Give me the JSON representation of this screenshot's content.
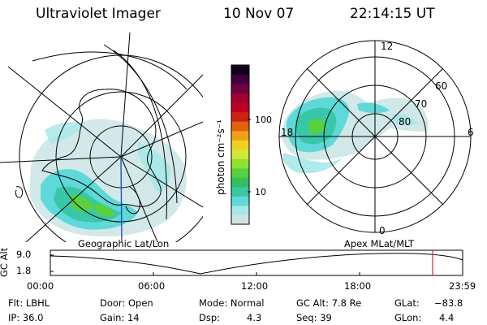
{
  "header": {
    "instrument": "Ultraviolet Imager",
    "date": "10 Nov 07",
    "time": "22:14:15 UT"
  },
  "maps": {
    "left_label": "Geographic Lat/Lon",
    "right_label": "Apex MLat/MLT",
    "polar": {
      "lat_labels": [
        "80",
        "70",
        "60"
      ],
      "mlt_labels": [
        "12",
        "18",
        "6",
        "0"
      ]
    }
  },
  "colorbar": {
    "unit_label": "photon cm⁻²s⁻¹",
    "tick_labels": [
      "100",
      "10"
    ],
    "colors": [
      "#cfe3e3",
      "#a8e8e8",
      "#5ed8d8",
      "#38c8a8",
      "#30c060",
      "#58d040",
      "#90e030",
      "#d0e838",
      "#f0d020",
      "#f0a018",
      "#e06010",
      "#d02010",
      "#c00020",
      "#a00030",
      "#700040",
      "#400040",
      "#100018"
    ]
  },
  "timeline": {
    "axis_title": "GC Alt",
    "y_ticks": [
      "9.0",
      "1.8"
    ],
    "x_ticks": [
      "00:00",
      "06:00",
      "12:00",
      "18:00",
      "23:59"
    ],
    "current_time_marker_color": "#e02020"
  },
  "status": {
    "filter": "Flt: LBHL",
    "door": "Door: Open",
    "mode": "Mode: Normal",
    "gc_alt": "GC Alt: 7.8 Re",
    "glat_label": "GLat:",
    "glat_value": "−83.8",
    "ip": "IP: 36.0",
    "gain": "Gain: 14",
    "dsp_label": "Dsp:",
    "dsp_value": "4.3",
    "seq": "Seq: 39",
    "glon_label": "GLon:",
    "glon_value": "4.4"
  }
}
